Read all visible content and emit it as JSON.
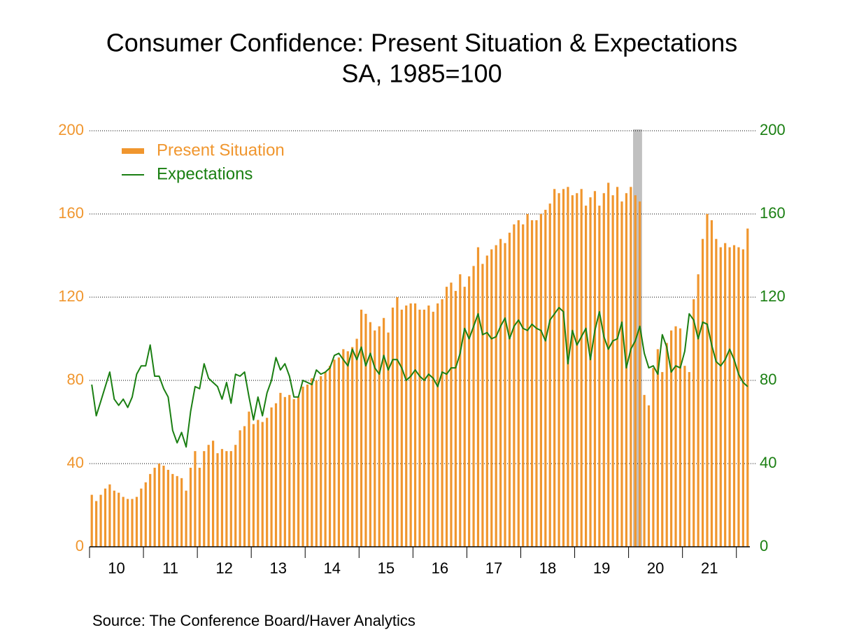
{
  "chart_data": {
    "type": "bar_line",
    "title": "Consumer Confidence: Present Situation & Expectations",
    "subtitle": "SA, 1985=100",
    "source": "Source:  The Conference Board/Haver Analytics",
    "categories": [
      null,
      null,
      null,
      null,
      null,
      null,
      "10",
      null,
      null,
      null,
      null,
      null,
      null,
      null,
      null,
      null,
      null,
      null,
      "11",
      null,
      null,
      null,
      null,
      null,
      null,
      null,
      null,
      null,
      null,
      null,
      "12",
      null,
      null,
      null,
      null,
      null,
      null,
      null,
      null,
      null,
      null,
      null,
      "13",
      null,
      null,
      null,
      null,
      null,
      null,
      null,
      null,
      null,
      null,
      null,
      "14",
      null,
      null,
      null,
      null,
      null,
      null,
      null,
      null,
      null,
      null,
      null,
      "15",
      null,
      null,
      null,
      null,
      null,
      null,
      null,
      null,
      null,
      null,
      null,
      "16",
      null,
      null,
      null,
      null,
      null,
      null,
      null,
      null,
      null,
      null,
      null,
      "17",
      null,
      null,
      null,
      null,
      null,
      null,
      null,
      null,
      null,
      null,
      null,
      "18",
      null,
      null,
      null,
      null,
      null,
      null,
      null,
      null,
      null,
      null,
      null,
      "19",
      null,
      null,
      null,
      null,
      null,
      null,
      null,
      null,
      null,
      null,
      null,
      "20",
      null,
      null,
      null,
      null,
      null,
      null,
      null,
      null,
      null,
      null,
      null,
      "21",
      null,
      null,
      null,
      null,
      null,
      null,
      null,
      null
    ],
    "series": [
      {
        "name": "Present Situation",
        "color": "#f0962e",
        "axis": "y",
        "kind": "bar",
        "values": [
          25,
          22,
          25,
          28,
          30,
          27,
          26,
          24,
          23,
          23,
          24,
          28,
          31,
          35,
          38,
          40,
          39,
          37,
          35,
          34,
          33,
          27,
          38,
          46,
          38,
          46,
          49,
          51,
          45,
          47,
          46,
          46,
          49,
          56,
          58,
          65,
          59,
          61,
          60,
          62,
          67,
          69,
          74,
          72,
          73,
          71,
          72,
          77,
          78,
          81,
          80,
          82,
          84,
          87,
          90,
          91,
          95,
          94,
          96,
          100,
          114,
          112,
          108,
          104,
          106,
          110,
          103,
          115,
          120,
          114,
          116,
          117,
          117,
          114,
          114,
          116,
          113,
          117,
          119,
          125,
          127,
          123,
          131,
          125,
          130,
          135,
          144,
          136,
          140,
          143,
          145,
          148,
          146,
          151,
          155,
          157,
          155,
          160,
          157,
          157,
          160,
          162,
          165,
          172,
          170,
          172,
          173,
          169,
          170,
          172,
          164,
          168,
          171,
          164,
          170,
          175,
          169,
          173,
          166,
          170,
          173,
          169,
          166,
          73,
          68,
          86,
          95,
          84,
          98,
          104,
          106,
          105,
          87,
          84,
          119,
          131,
          148,
          160,
          157,
          148,
          144,
          146,
          144,
          145,
          144,
          143,
          153
        ]
      },
      {
        "name": "Expectations",
        "color": "#1a7f12",
        "axis": "y2",
        "kind": "line",
        "values": [
          78,
          63,
          70,
          77,
          84,
          71,
          68,
          71,
          67,
          72,
          83,
          87,
          87,
          97,
          82,
          82,
          76,
          72,
          56,
          50,
          55,
          48,
          65,
          77,
          76,
          88,
          81,
          79,
          77,
          71,
          79,
          69,
          83,
          82,
          84,
          72,
          61,
          72,
          63,
          74,
          80,
          91,
          85,
          88,
          82,
          72,
          72,
          80,
          79,
          78,
          85,
          83,
          84,
          86,
          92,
          93,
          90,
          87,
          95,
          90,
          96,
          87,
          93,
          86,
          83,
          92,
          85,
          90,
          90,
          86,
          80,
          82,
          85,
          82,
          80,
          83,
          81,
          77,
          84,
          83,
          86,
          86,
          93,
          105,
          100,
          106,
          112,
          102,
          103,
          100,
          101,
          106,
          110,
          100,
          106,
          109,
          105,
          104,
          107,
          105,
          104,
          99,
          109,
          112,
          115,
          113,
          88,
          104,
          97,
          101,
          105,
          90,
          104,
          113,
          101,
          95,
          99,
          100,
          108,
          86,
          95,
          99,
          106,
          93,
          86,
          87,
          83,
          102,
          96,
          84,
          87,
          86,
          94,
          112,
          109,
          100,
          108,
          107,
          97,
          89,
          87,
          90,
          95,
          90,
          83,
          79,
          77
        ]
      }
    ],
    "recession_shading": {
      "start_index": 121,
      "end_index": 122,
      "color": "#c0c0c0"
    },
    "ylim": [
      0,
      200
    ],
    "yticks": [
      0,
      40,
      80,
      120,
      160,
      200
    ],
    "y_color": "#f0962e",
    "y2lim": [
      0,
      200
    ],
    "y2ticks": [
      0,
      40,
      80,
      120,
      160,
      200
    ],
    "y2_color": "#1a7f12",
    "grid": true,
    "legend": "top-left"
  }
}
